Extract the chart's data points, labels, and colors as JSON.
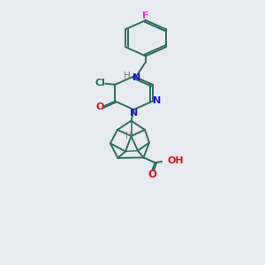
{
  "background_color": "#e8eaf2",
  "bond_color": "#2a6e5a",
  "n_color": "#1a1acc",
  "o_color": "#cc1a1a",
  "cl_color": "#2a6e5a",
  "f_color": "#cc44cc",
  "h_color": "#777777",
  "line_width": 1.4,
  "figsize": [
    3.0,
    3.0
  ],
  "dpi": 100,
  "xlim": [
    0,
    10
  ],
  "ylim": [
    0,
    13
  ]
}
